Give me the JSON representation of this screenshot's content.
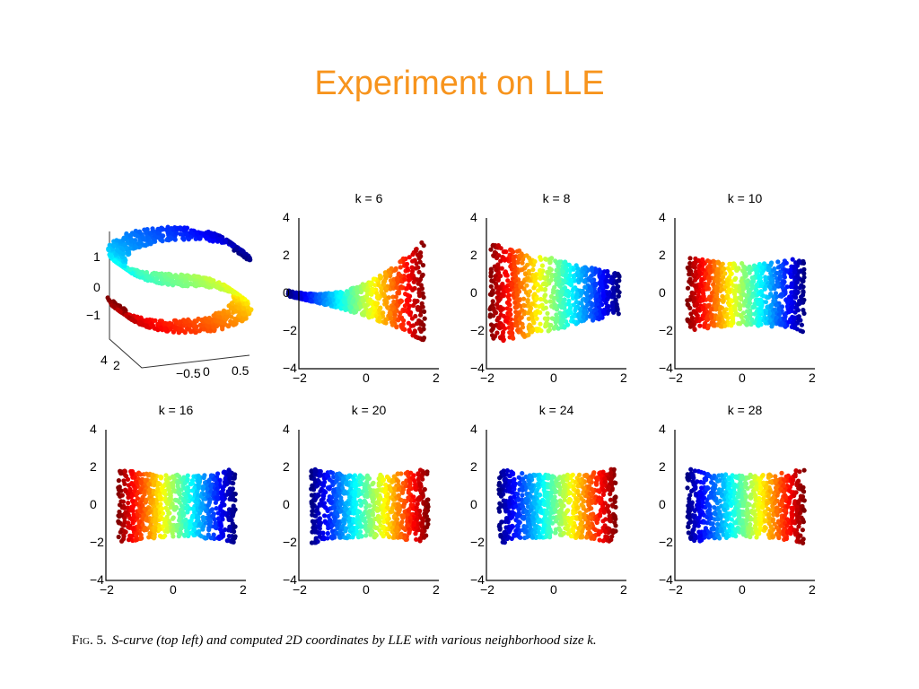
{
  "slide": {
    "title": "Experiment on LLE"
  },
  "caption": {
    "label": "Fig. 5.",
    "text": "S-curve (top left) and computed 2D coordinates by LLE with various neighborhood size k."
  },
  "colors": {
    "title": "#f7941d",
    "axis": "#000000",
    "colormap": "jet"
  },
  "chart_data": [
    {
      "type": "scatter",
      "subtype": "3d-s-curve",
      "title": "",
      "z_ticks": [
        "1",
        "0",
        "−1"
      ],
      "y_ticks": [
        "4",
        "2"
      ],
      "x_ticks": [
        "−0.5",
        "0",
        "0.5"
      ]
    },
    {
      "type": "scatter",
      "title": "k = 6",
      "xlim": [
        -2,
        2
      ],
      "ylim": [
        -4,
        4
      ],
      "x_ticks": [
        "−2",
        "0",
        "2"
      ],
      "y_ticks": [
        "4",
        "2",
        "0",
        "−2",
        "−4"
      ],
      "shape": "triangle",
      "color_order": "blue-left-to-red-right"
    },
    {
      "type": "scatter",
      "title": "k = 8",
      "xlim": [
        -2,
        2
      ],
      "ylim": [
        -4,
        4
      ],
      "x_ticks": [
        "−2",
        "0",
        "2"
      ],
      "y_ticks": [
        "4",
        "2",
        "0",
        "−2",
        "−4"
      ],
      "shape": "trapezoid",
      "color_order": "red-left-to-blue-right"
    },
    {
      "type": "scatter",
      "title": "k = 10",
      "xlim": [
        -2,
        2
      ],
      "ylim": [
        -4,
        4
      ],
      "x_ticks": [
        "−2",
        "0",
        "2"
      ],
      "y_ticks": [
        "4",
        "2",
        "0",
        "−2",
        "−4"
      ],
      "shape": "rectangle",
      "color_order": "red-left-to-blue-right"
    },
    {
      "type": "scatter",
      "title": "k = 16",
      "xlim": [
        -2,
        2
      ],
      "ylim": [
        -4,
        4
      ],
      "x_ticks": [
        "−2",
        "0",
        "2"
      ],
      "y_ticks": [
        "4",
        "2",
        "0",
        "−2",
        "−4"
      ],
      "shape": "rectangle",
      "color_order": "red-left-to-blue-right"
    },
    {
      "type": "scatter",
      "title": "k = 20",
      "xlim": [
        -2,
        2
      ],
      "ylim": [
        -4,
        4
      ],
      "x_ticks": [
        "−2",
        "0",
        "2"
      ],
      "y_ticks": [
        "4",
        "2",
        "0",
        "−2",
        "−4"
      ],
      "shape": "rectangle",
      "color_order": "blue-left-to-red-right"
    },
    {
      "type": "scatter",
      "title": "k = 24",
      "xlim": [
        -2,
        2
      ],
      "ylim": [
        -4,
        4
      ],
      "x_ticks": [
        "−2",
        "0",
        "2"
      ],
      "y_ticks": [
        "4",
        "2",
        "0",
        "−2",
        "−4"
      ],
      "shape": "rectangle",
      "color_order": "blue-left-to-red-right"
    },
    {
      "type": "scatter",
      "title": "k = 28",
      "xlim": [
        -2,
        2
      ],
      "ylim": [
        -4,
        4
      ],
      "x_ticks": [
        "−2",
        "0",
        "2"
      ],
      "y_ticks": [
        "4",
        "2",
        "0",
        "−2",
        "−4"
      ],
      "shape": "rectangle",
      "color_order": "blue-left-to-red-right"
    }
  ]
}
